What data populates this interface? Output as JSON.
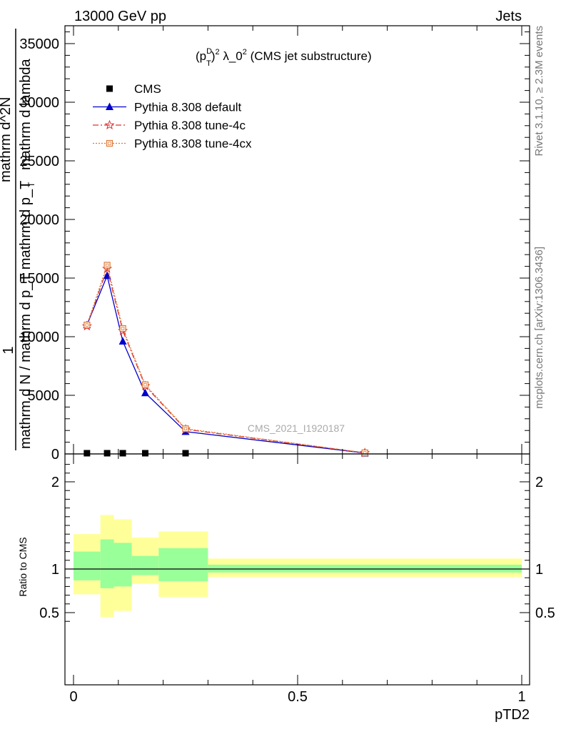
{
  "header": {
    "left": "13000 GeV pp",
    "right": "Jets"
  },
  "side_labels": {
    "rivet": "Rivet 3.1.10, ≥ 2.3M events",
    "mcplots": "mcplots.cern.ch [arXiv:1306.3436]"
  },
  "chart_data": {
    "type": "line",
    "title": "(p_T^D)^2 λ_0^2 (CMS jet substructure)",
    "title_parts": {
      "open": "(p",
      "sup1": "D",
      "sub1": "T",
      "close": ")",
      "exp1": "2",
      "mid": " λ_0",
      "exp2": "2",
      "tail": " (CMS jet substructure)"
    },
    "watermark": "CMS_2021_I1920187",
    "ylabel_parts": {
      "one": "1",
      "den": "mathrm d N / mathrm d p_T mathrm d p_T",
      "num": "mathrm d^2N",
      "lambda": "mathrm d lambda",
      "sub": "T"
    },
    "xlabel": "pTD2",
    "ratio_ylabel": "Ratio to CMS",
    "xlim": [
      0,
      1
    ],
    "ylim": [
      0,
      36000
    ],
    "ratio_ylim": [
      0.35,
      2.3
    ],
    "x_ticks": [
      "0",
      "0.5",
      "1"
    ],
    "y_ticks": [
      "0",
      "5000",
      "10000",
      "15000",
      "20000",
      "25000",
      "30000",
      "35000"
    ],
    "ratio_ticks": [
      "0.5",
      "1",
      "2"
    ],
    "legend_position": "top-left",
    "series": [
      {
        "name": "CMS",
        "color": "#000000",
        "marker": "square",
        "x": [
          0.03,
          0.075,
          0.11,
          0.16,
          0.25,
          0.65
        ],
        "y": [
          30,
          40,
          35,
          20,
          15,
          2
        ]
      },
      {
        "name": "Pythia 8.308 default",
        "color": "#0000cc",
        "marker": "triangle",
        "x": [
          0.03,
          0.075,
          0.11,
          0.16,
          0.25,
          0.65
        ],
        "y": [
          11000,
          15200,
          9600,
          5200,
          1900,
          80
        ]
      },
      {
        "name": "Pythia 8.308 tune-4c",
        "color": "#dd3333",
        "marker": "star",
        "x": [
          0.03,
          0.075,
          0.11,
          0.16,
          0.25,
          0.65
        ],
        "y": [
          10900,
          15800,
          10500,
          5800,
          2100,
          90
        ]
      },
      {
        "name": "Pythia 8.308 tune-4cx",
        "color": "#dd7733",
        "marker": "open-square",
        "x": [
          0.03,
          0.075,
          0.11,
          0.16,
          0.25,
          0.65
        ],
        "y": [
          11000,
          16100,
          10700,
          5900,
          2150,
          95
        ]
      }
    ],
    "ratio_bands": [
      {
        "x0": 0.0,
        "x1": 0.06,
        "green": [
          0.87,
          1.2
        ],
        "yellow": [
          0.71,
          1.4
        ]
      },
      {
        "x0": 0.06,
        "x1": 0.09,
        "green": [
          0.78,
          1.34
        ],
        "yellow": [
          0.45,
          1.62
        ]
      },
      {
        "x0": 0.09,
        "x1": 0.13,
        "green": [
          0.8,
          1.3
        ],
        "yellow": [
          0.52,
          1.57
        ]
      },
      {
        "x0": 0.13,
        "x1": 0.19,
        "green": [
          0.93,
          1.15
        ],
        "yellow": [
          0.83,
          1.36
        ]
      },
      {
        "x0": 0.19,
        "x1": 0.3,
        "green": [
          0.86,
          1.24
        ],
        "yellow": [
          0.68,
          1.43
        ]
      },
      {
        "x0": 0.3,
        "x1": 1.0,
        "green": [
          0.96,
          1.05
        ],
        "yellow": [
          0.91,
          1.12
        ]
      }
    ],
    "colors": {
      "band_green": "#99ff99",
      "band_yellow": "#ffff99"
    }
  }
}
